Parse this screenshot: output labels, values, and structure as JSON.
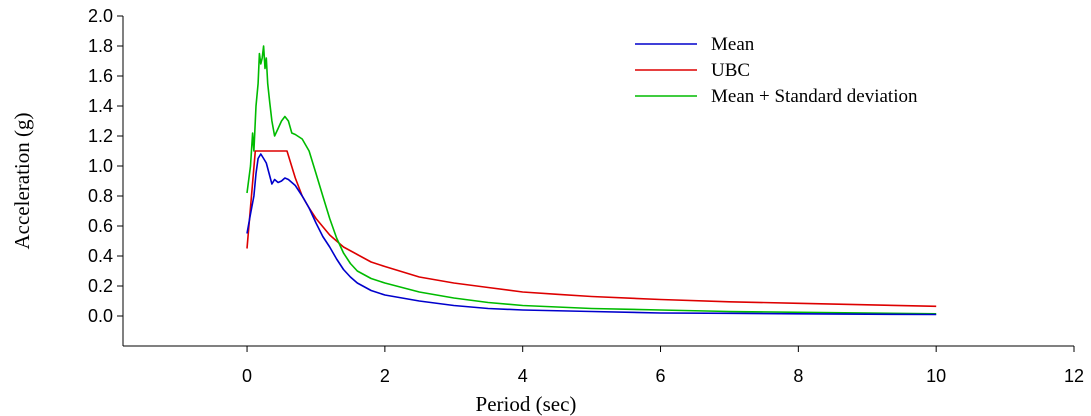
{
  "chart_data": {
    "type": "line",
    "title": "",
    "xlabel": "Period (sec)",
    "ylabel": "Acceleration (g)",
    "xlim": [
      -1.8,
      12
    ],
    "ylim": [
      -0.2,
      2.0
    ],
    "xticks": [
      "0",
      "2",
      "4",
      "6",
      "8",
      "10",
      "12"
    ],
    "yticks": [
      "0.0",
      "0.2",
      "0.4",
      "0.6",
      "0.8",
      "1.0",
      "1.2",
      "1.4",
      "1.6",
      "1.8",
      "2.0"
    ],
    "grid": false,
    "legend_position": "top-right",
    "series": [
      {
        "name": "Mean",
        "color": "#0000cc",
        "x": [
          0.0,
          0.05,
          0.1,
          0.13,
          0.16,
          0.2,
          0.24,
          0.28,
          0.32,
          0.36,
          0.4,
          0.45,
          0.5,
          0.55,
          0.6,
          0.7,
          0.8,
          0.9,
          1.0,
          1.1,
          1.2,
          1.3,
          1.4,
          1.5,
          1.6,
          1.8,
          2.0,
          2.5,
          3.0,
          3.5,
          4.0,
          5.0,
          6.0,
          7.0,
          8.0,
          9.0,
          10.0
        ],
        "y": [
          0.55,
          0.68,
          0.8,
          0.95,
          1.05,
          1.08,
          1.05,
          1.02,
          0.95,
          0.88,
          0.91,
          0.89,
          0.9,
          0.92,
          0.91,
          0.87,
          0.8,
          0.72,
          0.62,
          0.53,
          0.46,
          0.38,
          0.31,
          0.26,
          0.22,
          0.17,
          0.14,
          0.1,
          0.07,
          0.05,
          0.04,
          0.03,
          0.02,
          0.018,
          0.015,
          0.012,
          0.01
        ]
      },
      {
        "name": "UBC",
        "color": "#dd0000",
        "x": [
          0.0,
          0.12,
          0.13,
          0.58,
          0.7,
          0.8,
          0.9,
          1.0,
          1.2,
          1.4,
          1.6,
          1.8,
          2.0,
          2.5,
          3.0,
          3.5,
          4.0,
          4.5,
          5.0,
          6.0,
          7.0,
          8.0,
          9.0,
          10.0
        ],
        "y": [
          0.45,
          1.1,
          1.1,
          1.1,
          0.92,
          0.8,
          0.72,
          0.65,
          0.54,
          0.46,
          0.41,
          0.36,
          0.33,
          0.26,
          0.22,
          0.19,
          0.16,
          0.145,
          0.13,
          0.11,
          0.095,
          0.085,
          0.075,
          0.065
        ]
      },
      {
        "name": "Mean + Standard deviation",
        "color": "#00bb00",
        "x": [
          0.0,
          0.05,
          0.08,
          0.1,
          0.13,
          0.16,
          0.18,
          0.2,
          0.22,
          0.24,
          0.26,
          0.28,
          0.3,
          0.33,
          0.36,
          0.4,
          0.45,
          0.5,
          0.55,
          0.6,
          0.65,
          0.7,
          0.8,
          0.9,
          1.0,
          1.1,
          1.2,
          1.3,
          1.4,
          1.5,
          1.6,
          1.8,
          2.0,
          2.5,
          3.0,
          3.5,
          4.0,
          5.0,
          6.0,
          7.0,
          8.0,
          9.0,
          10.0
        ],
        "y": [
          0.82,
          1.0,
          1.22,
          1.1,
          1.4,
          1.55,
          1.75,
          1.68,
          1.72,
          1.8,
          1.65,
          1.72,
          1.55,
          1.42,
          1.3,
          1.2,
          1.25,
          1.3,
          1.33,
          1.3,
          1.22,
          1.21,
          1.18,
          1.1,
          0.95,
          0.8,
          0.65,
          0.52,
          0.42,
          0.35,
          0.3,
          0.25,
          0.22,
          0.16,
          0.12,
          0.09,
          0.07,
          0.05,
          0.04,
          0.03,
          0.025,
          0.02,
          0.015
        ]
      }
    ]
  }
}
